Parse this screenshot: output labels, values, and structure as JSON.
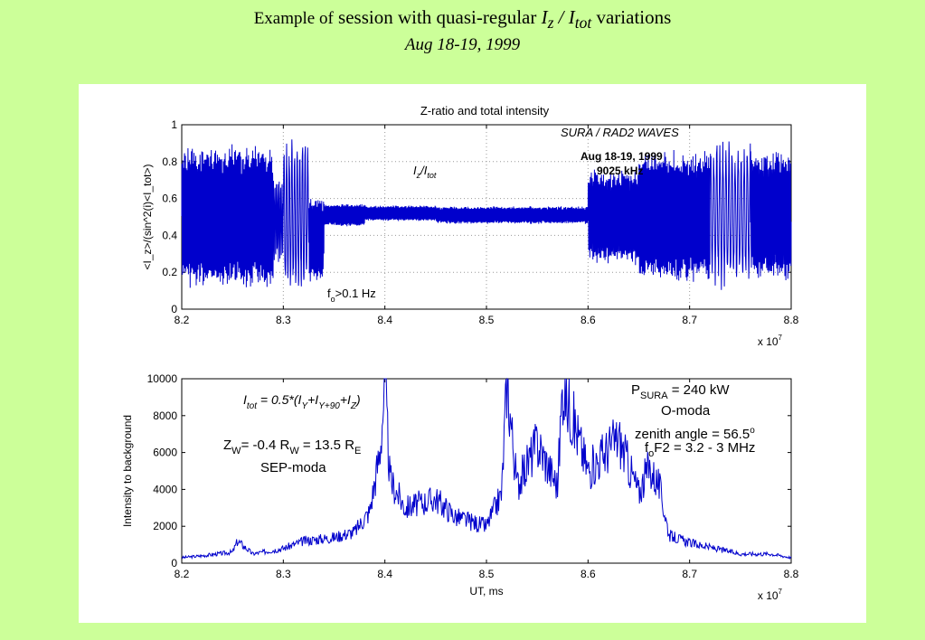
{
  "slide": {
    "title_prefix": "Example of",
    "title_middle": "session with quasi-regular",
    "title_var": "I",
    "title_var_sub": "z",
    "title_slash": "/",
    "title_var2": "I",
    "title_var2_sub": "tot",
    "title_suffix": "variations",
    "subtitle": "Aug 18-19, 1999"
  },
  "colors": {
    "page_background": "#ccff99",
    "series": "#0000cc",
    "grid": "#999999"
  },
  "chart_data": [
    {
      "type": "line",
      "title": "Z-ratio and total intensity",
      "xlabel": "",
      "ylabel": "<I_z>/(sin^2(i)<I_tot>)",
      "xlim": [
        82000000,
        88000000
      ],
      "ylim": [
        0,
        1
      ],
      "x_ticks": [
        "8.2",
        "8.3",
        "8.4",
        "8.5",
        "8.6",
        "8.7",
        "8.8"
      ],
      "y_ticks": [
        "0",
        "0.2",
        "0.4",
        "0.6",
        "0.8",
        "1"
      ],
      "x_multiplier": "x 10",
      "x_multiplier_exp": "7",
      "grid": true,
      "annotations": {
        "source": "SURA / RAD2 WAVES",
        "date": "Aug 18-19, 1999",
        "freq": "9025 kHz",
        "series_label_main": "I",
        "series_label_sub1": "z",
        "series_label_slash": "/I",
        "series_label_sub2": "tot",
        "filter_main": "f",
        "filter_sub": "o",
        "filter_rest": ">0.1 Hz"
      },
      "series": [
        {
          "color": "#0000cc",
          "segments": [
            {
              "x_start": 82000000,
              "x_end": 82900000,
              "center": 0.5,
              "amplitude": 0.33,
              "period": 8500
            },
            {
              "x_start": 82900000,
              "x_end": 83000000,
              "center": 0.48,
              "amplitude": 0.2,
              "period": 14000
            },
            {
              "x_start": 83000000,
              "x_end": 83250000,
              "center": 0.5,
              "amplitude": 0.38,
              "period": 26000
            },
            {
              "x_start": 83250000,
              "x_end": 83400000,
              "center": 0.38,
              "amplitude": 0.2,
              "period": 9000
            },
            {
              "x_start": 83400000,
              "x_end": 83800000,
              "center": 0.51,
              "amplitude": 0.05,
              "period": 4000
            },
            {
              "x_start": 83800000,
              "x_end": 84500000,
              "center": 0.52,
              "amplitude": 0.035,
              "period": 5500
            },
            {
              "x_start": 84500000,
              "x_end": 86000000,
              "center": 0.51,
              "amplitude": 0.04,
              "period": 9000
            },
            {
              "x_start": 86000000,
              "x_end": 86500000,
              "center": 0.5,
              "amplitude": 0.22,
              "period": 10000
            },
            {
              "x_start": 86500000,
              "x_end": 87200000,
              "center": 0.5,
              "amplitude": 0.3,
              "period": 9000
            },
            {
              "x_start": 87200000,
              "x_end": 87600000,
              "center": 0.52,
              "amplitude": 0.35,
              "period": 30000
            },
            {
              "x_start": 87600000,
              "x_end": 88000000,
              "center": 0.5,
              "amplitude": 0.3,
              "period": 10000
            }
          ]
        }
      ]
    },
    {
      "type": "line",
      "title": "",
      "xlabel": "UT, ms",
      "ylabel": "Intensity to background",
      "xlim": [
        82000000,
        88000000
      ],
      "ylim": [
        0,
        10000
      ],
      "x_ticks": [
        "8.2",
        "8.3",
        "8.4",
        "8.5",
        "8.6",
        "8.7",
        "8.8"
      ],
      "y_ticks": [
        "0",
        "2000",
        "4000",
        "6000",
        "8000",
        "10000"
      ],
      "x_multiplier": "x 10",
      "x_multiplier_exp": "7",
      "grid": false,
      "annotations": {
        "formula_main": "I",
        "formula_sub": "tot",
        "formula_rest": " = 0.5*(I",
        "formula_sub_y": "Y",
        "formula_plus": "+I",
        "formula_sub_y90": "Y+90",
        "formula_plus2": "+I",
        "formula_sub_z": "Z",
        "formula_close": ")",
        "zw_main": "Z",
        "zw_sub": "W",
        "zw_rest": "= -0.4  R",
        "rw_sub": "W",
        "rw_rest": " = 13.5 R",
        "re_sub": "E",
        "sep_mode": "SEP-moda",
        "power_main": "P",
        "power_sub": "SURA",
        "power_rest": " = 240 kW",
        "o_mode": "O-moda",
        "zenith": "zenith angle = 56.5",
        "zenith_deg": "o",
        "fof2_main": "f",
        "fof2_sub": "o",
        "fof2_rest": "F2 = 3.2 - 3 MHz"
      },
      "series": [
        {
          "color": "#0000cc",
          "x": [
            82000000,
            82200000,
            82500000,
            82550000,
            82700000,
            83000000,
            83200000,
            83500000,
            83700000,
            83850000,
            83950000,
            84000000,
            84050000,
            84200000,
            84500000,
            84700000,
            85000000,
            85150000,
            85200000,
            85300000,
            85500000,
            85700000,
            85750000,
            86000000,
            86300000,
            86500000,
            86600000,
            86700000,
            86800000,
            87000000,
            87500000,
            87800000,
            88000000
          ],
          "y": [
            300,
            400,
            600,
            1200,
            500,
            800,
            1200,
            1400,
            1700,
            2800,
            6000,
            9700,
            4500,
            3000,
            3500,
            2500,
            2000,
            3800,
            10000,
            4200,
            6500,
            4200,
            9700,
            5000,
            6800,
            3800,
            5200,
            4200,
            1500,
            1100,
            500,
            500,
            300
          ]
        }
      ]
    }
  ]
}
